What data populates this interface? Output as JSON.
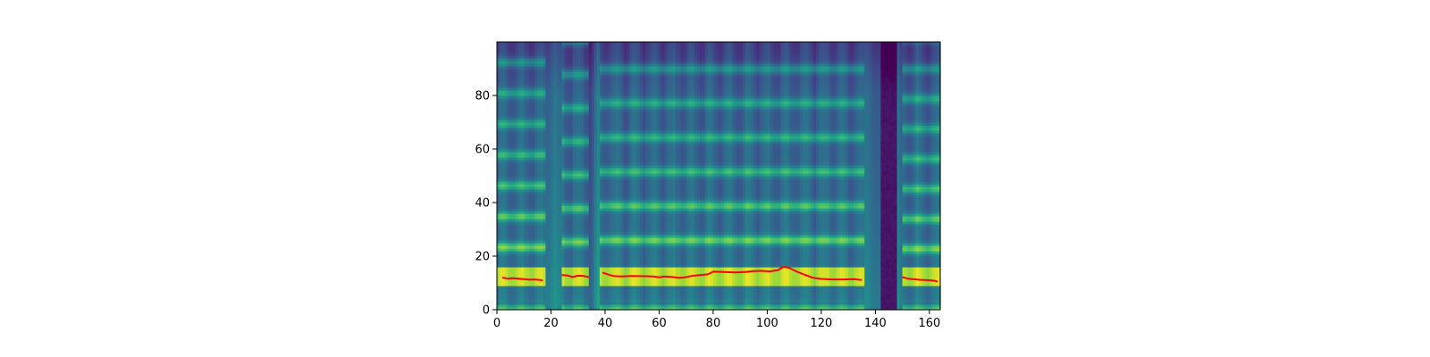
{
  "chart_data": {
    "type": "heatmap",
    "title": "",
    "xlabel": "",
    "ylabel": "",
    "xlim": [
      0,
      164
    ],
    "ylim": [
      0,
      100
    ],
    "x_ticks": [
      0,
      20,
      40,
      60,
      80,
      100,
      120,
      140,
      160
    ],
    "y_ticks": [
      0,
      20,
      40,
      60,
      80
    ],
    "colormap": "viridis",
    "grid": false,
    "heatmap": {
      "description_free": true,
      "n_frames": 164,
      "n_bins": 100,
      "segments": [
        {
          "start": 0,
          "end": 18,
          "f0": 11.5
        },
        {
          "start": 24,
          "end": 34,
          "f0": 12.5
        },
        {
          "start": 38,
          "end": 136,
          "f0": 12.8
        },
        {
          "start": 150,
          "end": 164,
          "f0": 11.2
        }
      ],
      "dark_columns": [
        {
          "start": 142,
          "end": 148
        }
      ]
    },
    "series": [
      {
        "color": "#ff0000",
        "segments": [
          {
            "x": [
              2,
              4,
              6,
              8,
              10,
              12,
              14,
              16,
              17
            ],
            "y": [
              12.0,
              11.6,
              11.8,
              11.6,
              11.4,
              11.2,
              11.3,
              11.1,
              10.9
            ]
          },
          {
            "x": [
              24,
              26,
              28,
              30,
              32,
              34
            ],
            "y": [
              12.9,
              12.8,
              12.2,
              12.7,
              12.6,
              12.2
            ]
          },
          {
            "x": [
              39,
              41,
              43,
              46,
              50,
              55,
              58,
              60,
              62,
              65,
              67,
              69,
              72,
              75,
              78,
              80,
              84,
              88,
              92,
              95,
              98,
              101,
              104,
              106,
              108,
              111,
              114,
              117,
              120,
              124,
              128,
              132,
              135
            ],
            "y": [
              13.9,
              13.2,
              12.6,
              12.4,
              12.6,
              12.5,
              12.4,
              12.1,
              12.4,
              12.2,
              11.9,
              12.0,
              12.6,
              12.9,
              13.2,
              14.2,
              14.1,
              13.9,
              14.1,
              14.4,
              14.5,
              14.3,
              14.8,
              16.0,
              15.7,
              14.2,
              13.0,
              11.9,
              11.5,
              11.3,
              11.3,
              11.4,
              11.1
            ]
          },
          {
            "x": [
              150,
              152,
              154,
              156,
              158,
              160,
              162,
              163
            ],
            "y": [
              12.2,
              11.6,
              11.4,
              11.2,
              11.1,
              11.0,
              10.8,
              10.4
            ]
          }
        ]
      }
    ]
  }
}
